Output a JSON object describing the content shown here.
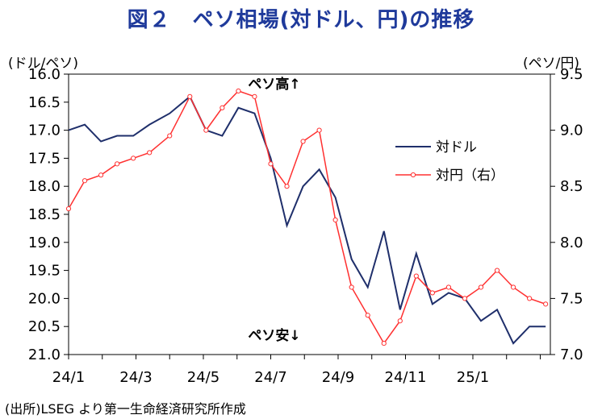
{
  "chart_data": {
    "type": "line",
    "title": "図２　ペソ相場(対ドル、円)の推移",
    "left_unit": "(ドル/ペソ)",
    "right_unit": "(ペソ/円)",
    "source": "(出所)LSEG より第一生命経済研究所作成",
    "annotation_top": "ペソ高↑",
    "annotation_bottom": "ペソ安↓",
    "left_axis": {
      "min": 16.0,
      "max": 21.0,
      "inverted": true,
      "ticks": [
        "16.0",
        "16.5",
        "17.0",
        "17.5",
        "18.0",
        "18.5",
        "19.0",
        "19.5",
        "20.0",
        "20.5",
        "21.0"
      ]
    },
    "right_axis": {
      "min": 7.0,
      "max": 9.5,
      "ticks": [
        "9.5",
        "9.0",
        "8.5",
        "8.0",
        "7.5",
        "7.0"
      ]
    },
    "x_ticks": [
      "24/1",
      "24/3",
      "24/5",
      "24/7",
      "24/9",
      "24/11",
      "25/1"
    ],
    "legend": {
      "placement": "center-right"
    },
    "grid": false,
    "series": [
      {
        "name": "対ドル",
        "axis": "left",
        "color": "#1f2f6b",
        "x": [
          2024.0,
          2024.04,
          2024.08,
          2024.12,
          2024.16,
          2024.2,
          2024.25,
          2024.3,
          2024.34,
          2024.38,
          2024.42,
          2024.46,
          2024.5,
          2024.54,
          2024.58,
          2024.62,
          2024.66,
          2024.7,
          2024.74,
          2024.78,
          2024.82,
          2024.86,
          2024.9,
          2024.94,
          2024.98,
          2025.02,
          2025.06,
          2025.1,
          2025.14,
          2025.18
        ],
        "values": [
          17.0,
          16.9,
          17.2,
          17.1,
          17.1,
          16.9,
          16.7,
          16.4,
          17.0,
          17.1,
          16.6,
          16.7,
          17.5,
          18.7,
          18.0,
          17.7,
          18.2,
          19.3,
          19.8,
          18.8,
          20.2,
          19.2,
          20.1,
          19.9,
          20.0,
          20.4,
          20.2,
          20.8,
          20.5,
          20.5
        ]
      },
      {
        "name": "対円（右）",
        "axis": "right",
        "color": "#ff3030",
        "x": [
          2024.0,
          2024.04,
          2024.08,
          2024.12,
          2024.16,
          2024.2,
          2024.25,
          2024.3,
          2024.34,
          2024.38,
          2024.42,
          2024.46,
          2024.5,
          2024.54,
          2024.58,
          2024.62,
          2024.66,
          2024.7,
          2024.74,
          2024.78,
          2024.82,
          2024.86,
          2024.9,
          2024.94,
          2024.98,
          2025.02,
          2025.06,
          2025.1,
          2025.14,
          2025.18
        ],
        "values": [
          8.3,
          8.55,
          8.6,
          8.7,
          8.75,
          8.8,
          8.95,
          9.3,
          9.0,
          9.2,
          9.35,
          9.3,
          8.7,
          8.5,
          8.9,
          9.0,
          8.2,
          7.6,
          7.35,
          7.1,
          7.3,
          7.7,
          7.55,
          7.6,
          7.5,
          7.6,
          7.75,
          7.6,
          7.5,
          7.45
        ]
      }
    ]
  }
}
